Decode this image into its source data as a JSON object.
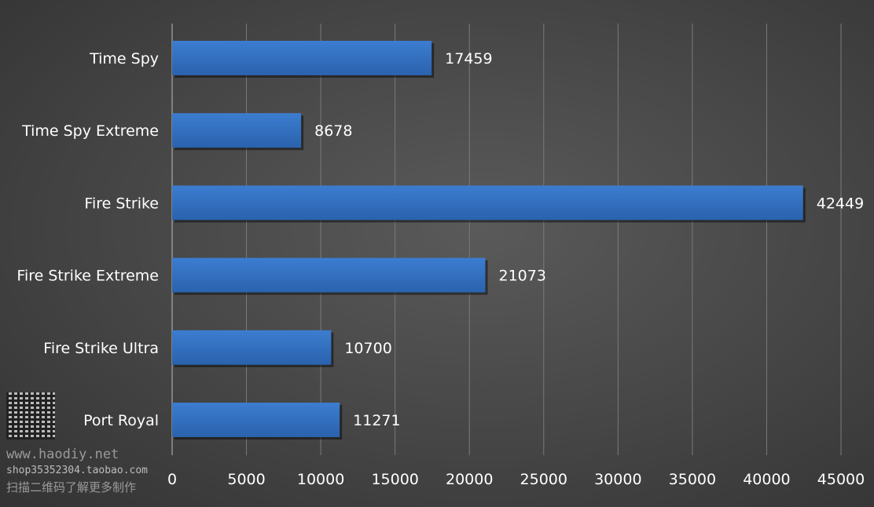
{
  "chart_data": {
    "type": "bar",
    "orientation": "horizontal",
    "categories": [
      "Time Spy",
      "Time Spy Extreme",
      "Fire Strike",
      "Fire Strike Extreme",
      "Fire Strike Ultra",
      "Port Royal"
    ],
    "values": [
      17459,
      8678,
      42449,
      21073,
      10700,
      11271
    ],
    "data_labels": [
      "17459",
      "8678",
      "42449",
      "21073",
      "10700",
      "11271"
    ],
    "xlim": [
      0,
      45000
    ],
    "x_ticks": [
      "0",
      "5000",
      "10000",
      "15000",
      "20000",
      "25000",
      "30000",
      "35000",
      "40000",
      "45000"
    ],
    "grid": "vertical",
    "bar_color": "#3272c4",
    "background_color": "#454545",
    "text_color": "#ffffff"
  },
  "watermark": {
    "line1": "www.haodiy.net",
    "line2": "shop35352304.taobao.com",
    "line3": "扫描二维码了解更多制作"
  }
}
